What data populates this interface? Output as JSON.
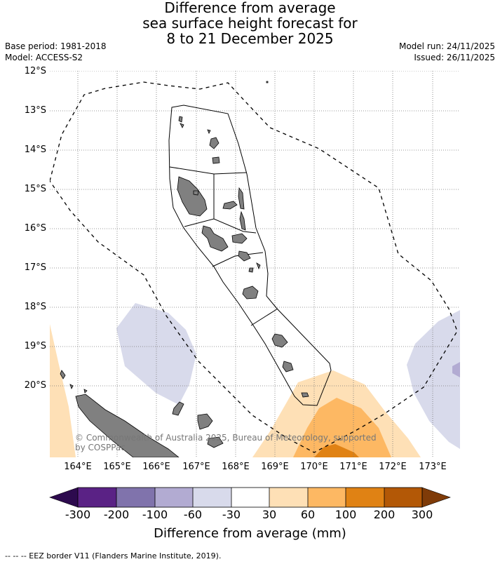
{
  "title": {
    "line1": "Difference from average",
    "line2": "sea surface height forecast for",
    "line3": "8 to 21 December 2025"
  },
  "meta": {
    "base_period": "Base period: 1981-2018",
    "model": "Model: ACCESS-S2",
    "model_run": "Model run: 24/11/2025",
    "issued": "Issued: 26/11/2025"
  },
  "axes": {
    "latitudes": [
      "12°S",
      "13°S",
      "14°S",
      "15°S",
      "16°S",
      "17°S",
      "18°S",
      "19°S",
      "20°S"
    ],
    "longitudes": [
      "164°E",
      "165°E",
      "166°E",
      "167°E",
      "168°E",
      "169°E",
      "170°E",
      "171°E",
      "172°E",
      "173°E"
    ]
  },
  "legend": {
    "title": "Difference from average (mm)",
    "labels": [
      "-300",
      "-200",
      "-100",
      "-60",
      "-30",
      "30",
      "60",
      "100",
      "200",
      "300"
    ],
    "colors": {
      "below_min": "#2d0a4e",
      "c1": "#5a2285",
      "c2": "#8073ac",
      "c3": "#b2abd2",
      "c4": "#d8daeb",
      "c5": "#ffffff",
      "c6": "#fee0b6",
      "c7": "#fdb863",
      "c8": "#e08214",
      "c9": "#b35806",
      "above_max": "#7f3b08"
    }
  },
  "map": {
    "land_color": "#808080",
    "credit_line1": "© Commonwealth of Australia 2025, Bureau of Meteorology, supported",
    "credit_line2": "by COSPPac"
  },
  "footer": "-- -- -- EEZ border V11 (Flanders Marine Institute, 2019)."
}
